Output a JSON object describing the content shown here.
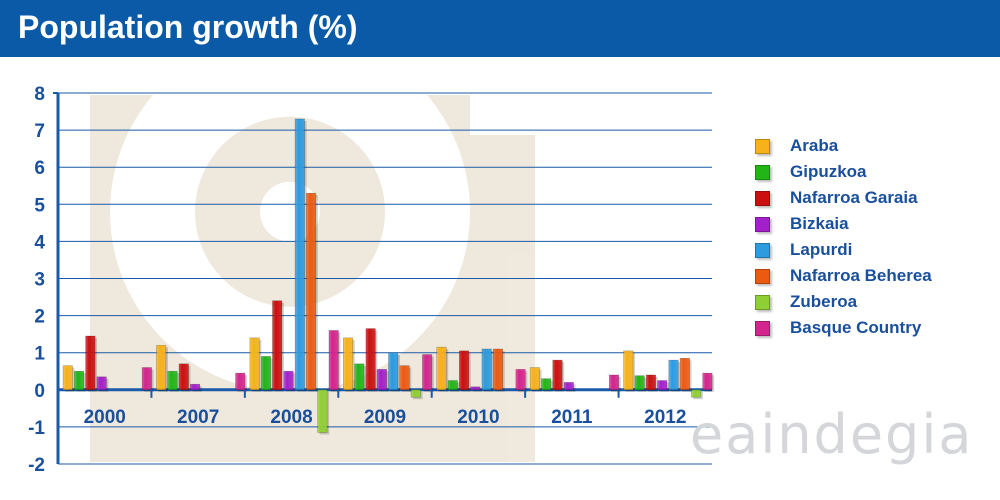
{
  "header": {
    "title": "Population growth (%)"
  },
  "watermark": "eaindegia",
  "chart_data": {
    "type": "bar",
    "title": "Population growth (%)",
    "xlabel": "",
    "ylabel": "",
    "ylim": [
      -2,
      8
    ],
    "yticks": [
      "8",
      "7",
      "6",
      "5",
      "4",
      "3",
      "2",
      "1",
      "0",
      "-1",
      "-2"
    ],
    "grid": true,
    "legend_position": "right",
    "categories": [
      "2000",
      "2007",
      "2008",
      "2009",
      "2010",
      "2011",
      "2012"
    ],
    "series": [
      {
        "name": "Araba",
        "color": "#f7b21a",
        "values": [
          0.65,
          1.2,
          1.4,
          1.4,
          1.15,
          0.6,
          1.05
        ]
      },
      {
        "name": "Gipuzkoa",
        "color": "#22b518",
        "values": [
          0.5,
          0.5,
          0.9,
          0.7,
          0.25,
          0.3,
          0.38
        ]
      },
      {
        "name": "Nafarroa Garaia",
        "color": "#cc1010",
        "values": [
          1.45,
          0.7,
          2.4,
          1.65,
          1.05,
          0.8,
          0.4
        ]
      },
      {
        "name": "Bizkaia",
        "color": "#a321c9",
        "values": [
          0.35,
          0.15,
          0.5,
          0.55,
          0.08,
          0.2,
          0.25
        ]
      },
      {
        "name": "Lapurdi",
        "color": "#2e9bdf",
        "values": [
          null,
          null,
          7.3,
          1.0,
          1.1,
          null,
          0.8
        ]
      },
      {
        "name": "Nafarroa Beherea",
        "color": "#ec5a12",
        "values": [
          null,
          null,
          5.3,
          0.65,
          1.1,
          null,
          0.85
        ]
      },
      {
        "name": "Zuberoa",
        "color": "#8fcf33",
        "values": [
          null,
          null,
          -1.15,
          -0.2,
          null,
          null,
          -0.2
        ]
      },
      {
        "name": "Basque Country",
        "color": "#d3258d",
        "values": [
          0.6,
          0.45,
          1.6,
          0.95,
          0.55,
          0.4,
          0.45
        ]
      }
    ]
  }
}
